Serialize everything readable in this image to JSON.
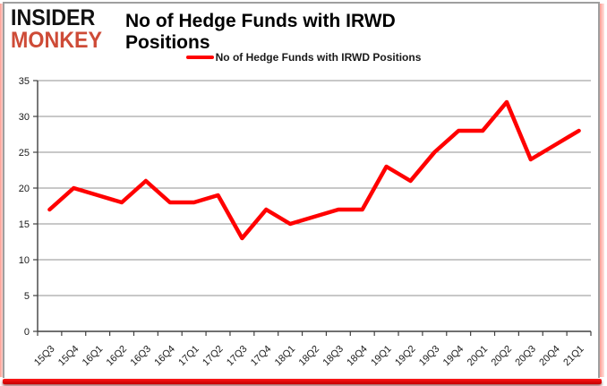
{
  "logo": {
    "line1": "INSIDER",
    "line2": "MONKEY"
  },
  "header": {
    "title": "No of Hedge Funds with IRWD Positions"
  },
  "legend": {
    "label": "No of Hedge Funds with IRWD Positions",
    "swatch_color": "#ff0000"
  },
  "colors": {
    "series_red": "#ff0000",
    "logo_red": "#ce4b37",
    "gridline": "#909090",
    "axis": "#404040",
    "tick_label": "#1a1a1a",
    "frame_grey": "#9f9f9f",
    "glow_pink": "#ff9d93",
    "bottom_bar_red": "#e00000"
  },
  "chart_data": {
    "type": "line",
    "title": "No of Hedge Funds with IRWD Positions",
    "categories": [
      "15Q3",
      "15Q4",
      "16Q1",
      "16Q2",
      "16Q3",
      "16Q4",
      "17Q1",
      "17Q2",
      "17Q3",
      "17Q4",
      "18Q1",
      "18Q2",
      "18Q3",
      "18Q4",
      "19Q1",
      "19Q2",
      "19Q3",
      "19Q4",
      "20Q1",
      "20Q2",
      "20Q3",
      "20Q4",
      "21Q1"
    ],
    "series": [
      {
        "name": "No of Hedge Funds with IRWD Positions",
        "color": "#ff0000",
        "values": [
          17,
          20,
          19,
          18,
          21,
          18,
          18,
          19,
          13,
          17,
          15,
          16,
          17,
          17,
          23,
          21,
          25,
          28,
          28,
          32,
          24,
          26,
          28
        ]
      }
    ],
    "xlabel": "",
    "ylabel": "",
    "ylim": [
      0,
      35
    ],
    "yticks": [
      0,
      5,
      10,
      15,
      20,
      25,
      30,
      35
    ],
    "grid": true,
    "legend_position": "top-center"
  }
}
